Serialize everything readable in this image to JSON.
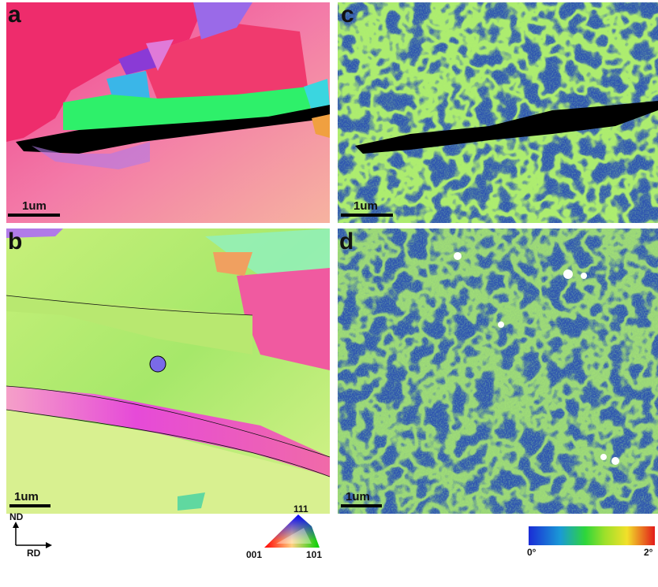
{
  "panels": [
    {
      "label": "a",
      "scale_bar": "1um"
    },
    {
      "label": "b",
      "scale_bar": "1um"
    },
    {
      "label": "c",
      "scale_bar": "1um"
    },
    {
      "label": "d",
      "scale_bar": "1um"
    }
  ],
  "orientation": {
    "vertical": "ND",
    "horizontal": "RD"
  },
  "ipf_key": {
    "top": "111",
    "left": "001",
    "right": "101"
  },
  "colorbar": {
    "min": "0°",
    "max": "2°"
  }
}
